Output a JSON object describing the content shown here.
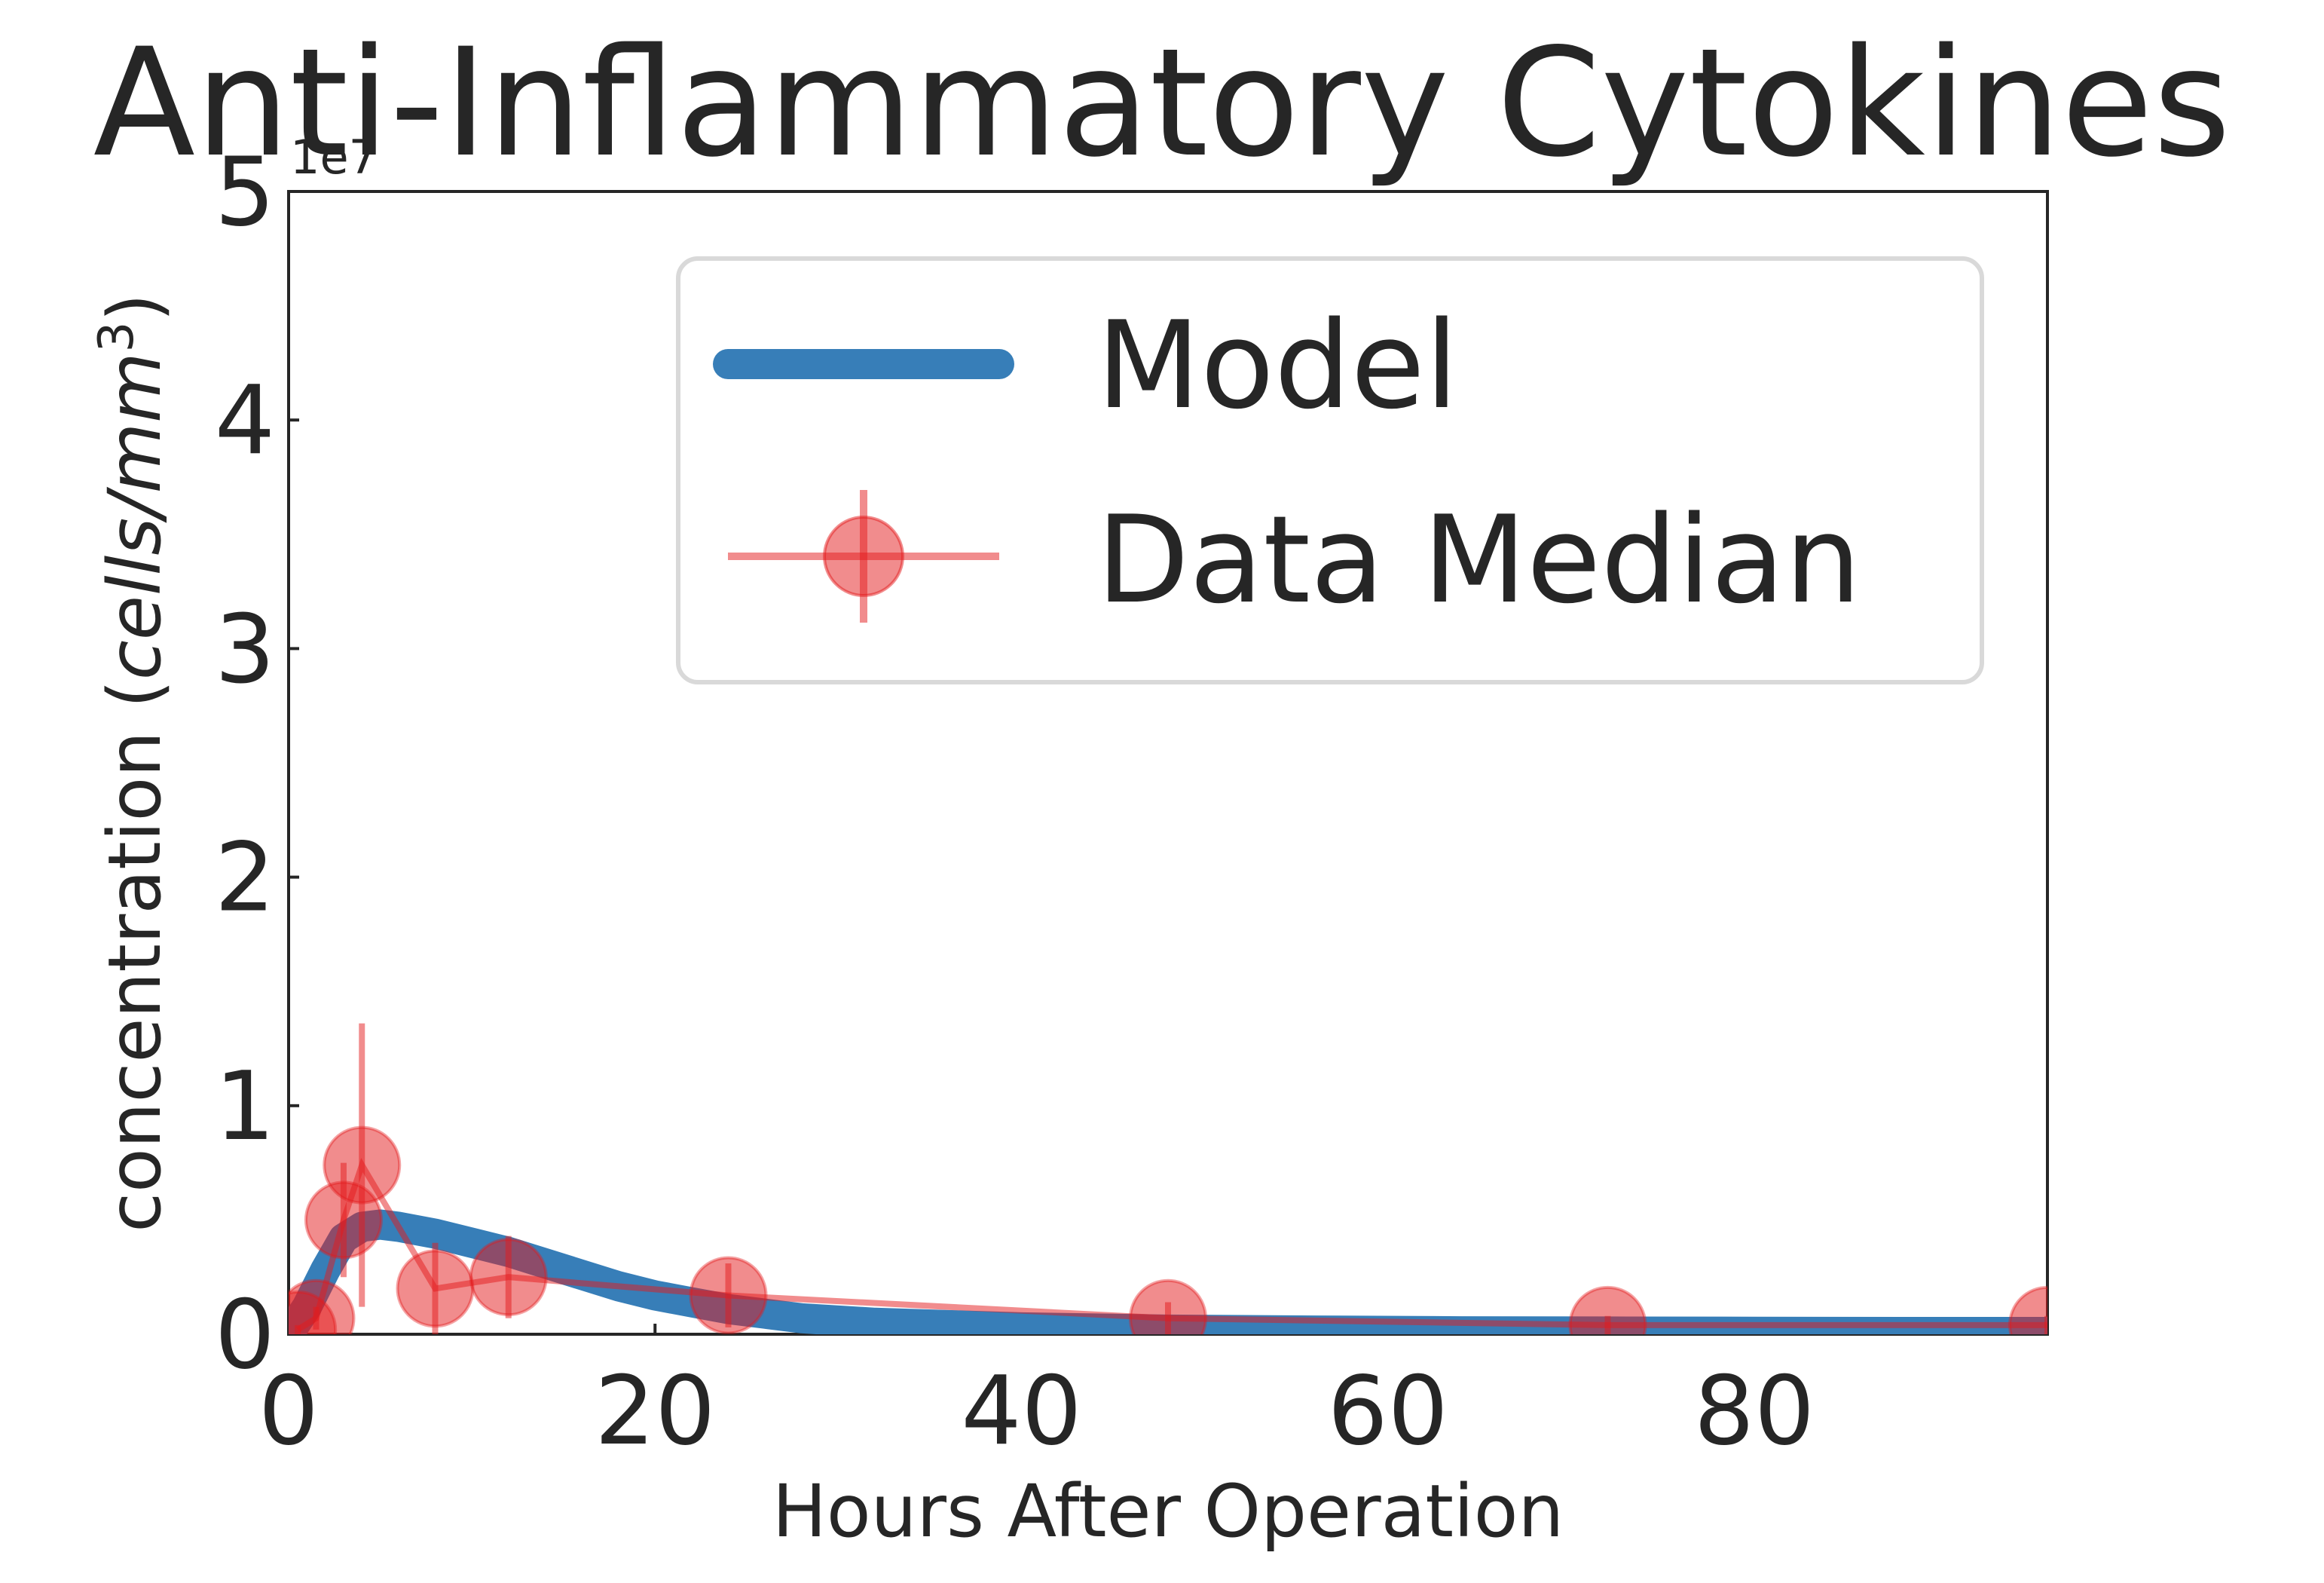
{
  "chart_data": {
    "type": "line",
    "title": "Anti-Inflammatory Cytokines",
    "xlabel": "Hours After Operation",
    "ylabel_prefix": "concentration (",
    "ylabel_units": "cells/mm",
    "ylabel_exponent": "3",
    "ylabel_suffix": ")",
    "y_offset_text": "1e7",
    "xlim": [
      0,
      96
    ],
    "ylim": [
      0,
      5
    ],
    "y_scale_multiplier": 10000000,
    "x_ticks": [
      0,
      20,
      40,
      60,
      80
    ],
    "x_tick_labels": [
      "0",
      "20",
      "40",
      "60",
      "80"
    ],
    "y_ticks": [
      0,
      1,
      2,
      3,
      4,
      5
    ],
    "y_tick_labels": [
      "0",
      "1",
      "2",
      "3",
      "4",
      "5"
    ],
    "grid": false,
    "legend_position": "upper-right",
    "series": [
      {
        "name": "Model",
        "kind": "line",
        "color": "#377eb8",
        "x": [
          0,
          1,
          2,
          3,
          4,
          5,
          6,
          8,
          10,
          12,
          14,
          16,
          18,
          20,
          22,
          24,
          26,
          28,
          30,
          32,
          36,
          40,
          44,
          48,
          56,
          64,
          72,
          80,
          88,
          96
        ],
        "y": [
          0.0,
          0.12,
          0.28,
          0.42,
          0.47,
          0.48,
          0.47,
          0.44,
          0.4,
          0.36,
          0.31,
          0.26,
          0.21,
          0.17,
          0.14,
          0.11,
          0.09,
          0.07,
          0.06,
          0.05,
          0.04,
          0.03,
          0.025,
          0.02,
          0.016,
          0.013,
          0.012,
          0.011,
          0.01,
          0.01
        ]
      },
      {
        "name": "Data Median",
        "kind": "errorbar",
        "color": "#e41a1c",
        "x": [
          0.5,
          1.5,
          3.0,
          4.0,
          8.0,
          12.0,
          24.0,
          48.0,
          72.0,
          96.0
        ],
        "y": [
          0.02,
          0.07,
          0.5,
          0.74,
          0.2,
          0.25,
          0.17,
          0.07,
          0.04,
          0.04
        ],
        "yerr": [
          0.02,
          0.05,
          0.25,
          0.62,
          0.2,
          0.18,
          0.14,
          0.07,
          0.04,
          0.04
        ]
      }
    ]
  }
}
